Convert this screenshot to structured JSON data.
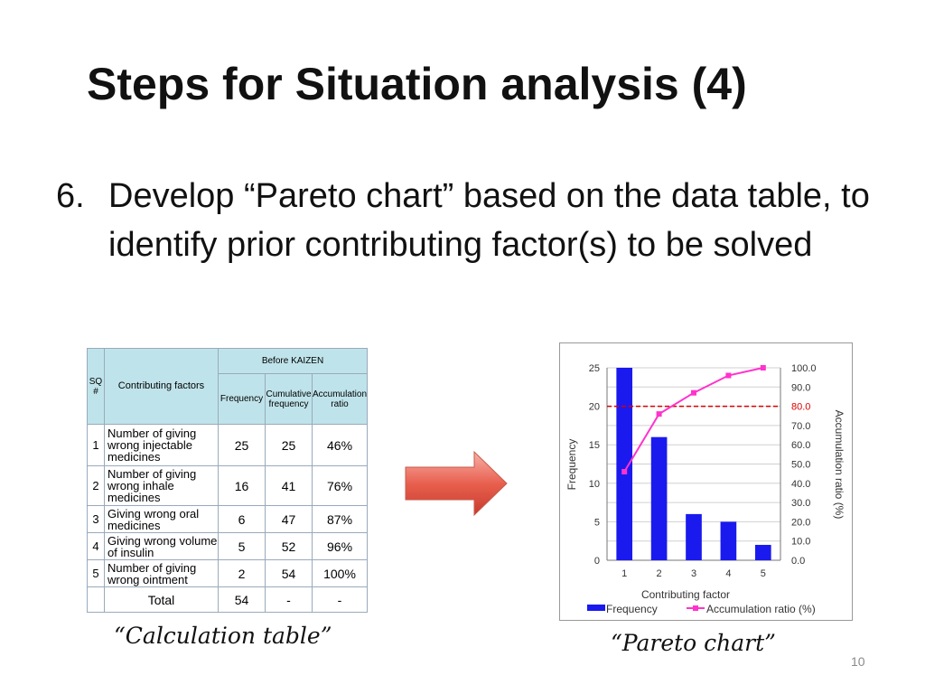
{
  "slide": {
    "title": "Steps for Situation analysis (4)",
    "step_number": "6.",
    "step_text": "Develop “Pareto chart” based on the data table, to identify prior contributing factor(s) to be solved",
    "table_caption": "“Calculation table”",
    "chart_caption": "“Pareto chart”",
    "page_number": "10"
  },
  "table": {
    "header_sq": "SQ #",
    "header_factors": "Contributing factors",
    "header_group": "Before KAIZEN",
    "header_frequency": "Frequency",
    "header_cumulative": "Cumulative frequency",
    "header_accumulation": "Accumulation ratio",
    "rows": [
      {
        "sq": "1",
        "factor": "Number of giving wrong injectable medicines",
        "frequency": "25",
        "cumulative": "25",
        "ratio": "46%"
      },
      {
        "sq": "2",
        "factor": "Number of giving wrong inhale medicines",
        "frequency": "16",
        "cumulative": "41",
        "ratio": "76%"
      },
      {
        "sq": "3",
        "factor": "Giving wrong oral medicines",
        "frequency": "6",
        "cumulative": "47",
        "ratio": "87%"
      },
      {
        "sq": "4",
        "factor": "Giving wrong volume of insulin",
        "frequency": "5",
        "cumulative": "52",
        "ratio": "96%"
      },
      {
        "sq": "5",
        "factor": "Number of giving wrong ointment",
        "frequency": "2",
        "cumulative": "54",
        "ratio": "100%"
      }
    ],
    "total_label": "Total",
    "total_frequency": "54",
    "total_cumulative": "-",
    "total_ratio": "-"
  },
  "chart_data": {
    "type": "bar",
    "categories": [
      "1",
      "2",
      "3",
      "4",
      "5"
    ],
    "series": [
      {
        "name": "Frequency",
        "type": "bar",
        "axis": "left",
        "values": [
          25,
          16,
          6,
          5,
          2
        ],
        "color": "#1a1aee"
      },
      {
        "name": "Accumulation ratio (%)",
        "type": "line",
        "axis": "right",
        "values": [
          46,
          76,
          87,
          96,
          100
        ],
        "color": "#ff33cc"
      }
    ],
    "xlabel": "Contributing factor",
    "ylabel": "Frequency",
    "y2label": "Accumulation ratio (%)",
    "ylim": [
      0,
      25
    ],
    "yticks": [
      "0",
      "5",
      "10",
      "15",
      "20",
      "25"
    ],
    "y2lim": [
      0,
      100
    ],
    "y2ticks": [
      "0.0",
      "10.0",
      "20.0",
      "30.0",
      "40.0",
      "50.0",
      "60.0",
      "70.0",
      "80.0",
      "90.0",
      "100.0"
    ],
    "threshold": {
      "value": 80,
      "label": "80.0",
      "color": "#dd0000"
    },
    "grid": true,
    "legend": "bottom"
  }
}
